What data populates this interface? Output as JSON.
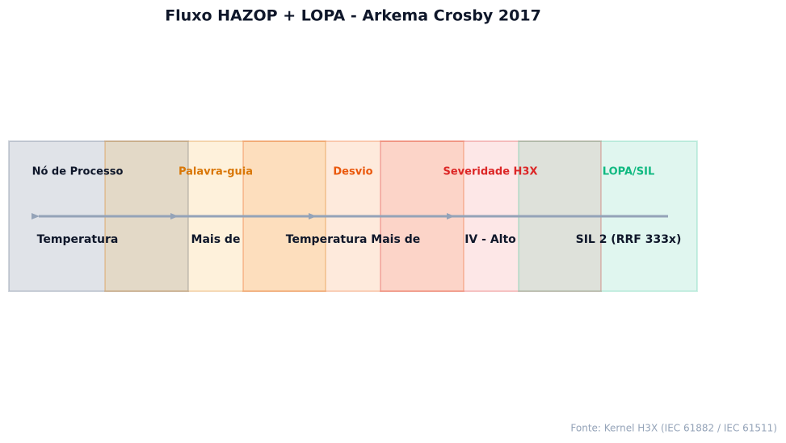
{
  "title": "Fluxo HAZOP + LOPA - Arkema Crosby 2017",
  "nodes": [
    {
      "label": "Nó de Processo",
      "value": "Temperatura"
    },
    {
      "label": "Palavra-guia",
      "value": "Mais de"
    },
    {
      "label": "Desvio",
      "value": "Temperatura Mais de"
    },
    {
      "label": "Severidade H3X",
      "value": "IV - Alto"
    },
    {
      "label": "LOPA/SIL",
      "value": "SIL 2 (RRF 333x)"
    }
  ],
  "footer": "Fonte: Kernel H3X (IEC 61882 / IEC 61511)"
}
